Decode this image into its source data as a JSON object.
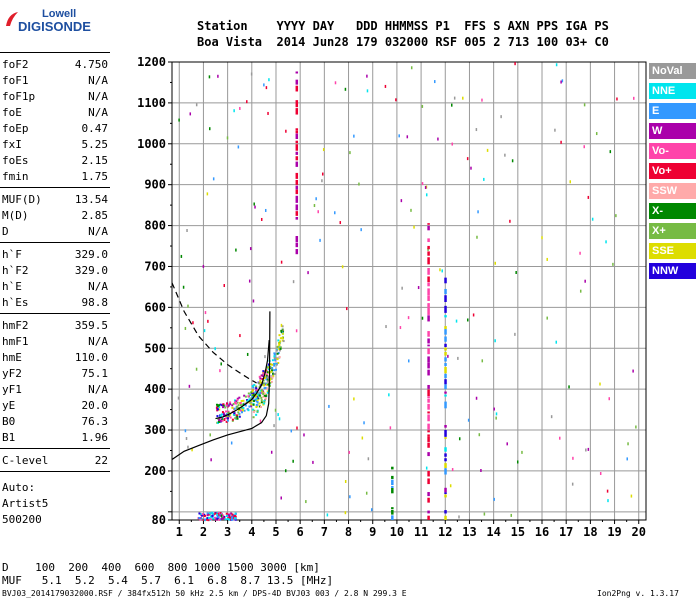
{
  "logo": {
    "line1": "Lowell",
    "line2": "DIGISONDE"
  },
  "header": {
    "labels": "Station    YYYY DAY   DDD HHMMSS P1  FFS S AXN PPS IGA PS",
    "values": "Boa Vista  2014 Jun28 179 032000 RSF 005 2 713 100 03+ C0"
  },
  "params": [
    {
      "name": "foF2",
      "value": "4.750"
    },
    {
      "name": "foF1",
      "value": "N/A"
    },
    {
      "name": "foF1p",
      "value": "N/A"
    },
    {
      "name": "foE",
      "value": "N/A"
    },
    {
      "name": "foEp",
      "value": "0.47"
    },
    {
      "name": "fxI",
      "value": "5.25"
    },
    {
      "name": "foEs",
      "value": "2.15"
    },
    {
      "name": "fmin",
      "value": "1.75"
    },
    {
      "name": "MUF(D)",
      "value": "13.54"
    },
    {
      "name": "M(D)",
      "value": "2.85"
    },
    {
      "name": "D",
      "value": "N/A"
    },
    {
      "name": "h`F",
      "value": "329.0"
    },
    {
      "name": "h`F2",
      "value": "329.0"
    },
    {
      "name": "h`E",
      "value": "N/A"
    },
    {
      "name": "h`Es",
      "value": "98.8"
    },
    {
      "name": "hmF2",
      "value": "359.5"
    },
    {
      "name": "hmF1",
      "value": "N/A"
    },
    {
      "name": "hmE",
      "value": "110.0"
    },
    {
      "name": "yF2",
      "value": "75.1"
    },
    {
      "name": "yF1",
      "value": "N/A"
    },
    {
      "name": "yE",
      "value": "20.0"
    },
    {
      "name": "B0",
      "value": "76.3"
    },
    {
      "name": "B1",
      "value": "1.96"
    },
    {
      "name": "C-level",
      "value": "22"
    }
  ],
  "auto": {
    "line1": "Auto:",
    "line2": "Artist5",
    "line3": "500200"
  },
  "legend": [
    {
      "label": "NoVal",
      "color": "#999999"
    },
    {
      "label": "NNE",
      "color": "#00e5ee"
    },
    {
      "label": "E",
      "color": "#3399ff"
    },
    {
      "label": "W",
      "color": "#aa00aa"
    },
    {
      "label": "Vo-",
      "color": "#ff44aa"
    },
    {
      "label": "Vo+",
      "color": "#ee0033"
    },
    {
      "label": "SSW",
      "color": "#ffaaaa"
    },
    {
      "label": "X-",
      "color": "#008800"
    },
    {
      "label": "X+",
      "color": "#77bb44"
    },
    {
      "label": "SSE",
      "color": "#dddd00"
    },
    {
      "label": "NNW",
      "color": "#2200dd"
    }
  ],
  "muf_table": {
    "d_row": "D    100  200  400  600  800 1000 1500 3000 [km]",
    "muf_row": "MUF   5.1  5.2  5.4  5.7  6.1  6.8  8.7 13.5 [MHz]"
  },
  "footer": {
    "left": "BVJ03_2014179032000.RSF / 384fx512h 50 kHz 2.5 km / DPS-4D BVJ03 003 / 2.8 N 299.3 E",
    "right": "Ion2Png v. 1.3.17"
  },
  "chart_data": {
    "type": "scatter",
    "xlim": [
      0.7,
      20.3
    ],
    "ylim": [
      80,
      1200
    ],
    "x_ticks": [
      1,
      2,
      3,
      4,
      5,
      6,
      7,
      8,
      9,
      10,
      11,
      12,
      13,
      14,
      15,
      16,
      17,
      18,
      19,
      20
    ],
    "y_ticks": [
      80,
      100,
      200,
      300,
      400,
      500,
      600,
      700,
      800,
      900,
      1000,
      1100,
      1200
    ],
    "y_tick_labels": [
      "80",
      "",
      "200",
      "300",
      "400",
      "500",
      "600",
      "700",
      "800",
      "900",
      "1000",
      "1100",
      "1200"
    ],
    "grid": true,
    "legend_position": "right",
    "profile_curve": {
      "x": [
        0.7,
        1.2,
        1.8,
        2.4,
        3.0,
        3.5,
        4.0,
        4.4,
        4.6,
        4.7,
        4.73,
        4.75
      ],
      "y": [
        228,
        248,
        262,
        276,
        288,
        296,
        304,
        318,
        335,
        365,
        430,
        590
      ]
    },
    "dashed_curve": {
      "x": [
        0.7,
        1.2,
        1.8,
        2.4,
        3.0,
        3.5,
        3.9,
        4.2
      ],
      "y": [
        660,
        590,
        530,
        490,
        460,
        440,
        425,
        415
      ]
    },
    "trace_curve": {
      "x": [
        2.5,
        2.8,
        3.1,
        3.4,
        3.7,
        4.0,
        4.2,
        4.4,
        4.55,
        4.65,
        4.72
      ],
      "y": [
        328,
        332,
        340,
        350,
        362,
        375,
        390,
        410,
        440,
        470,
        520
      ]
    },
    "clusters": [
      {
        "name": "F-trace",
        "x_range": [
          2.5,
          4.8
        ],
        "y_range": [
          325,
          480
        ],
        "count": 260,
        "colors": [
          "#ee0033",
          "#ff44aa",
          "#3399ff",
          "#00e5ee",
          "#008800",
          "#aa00aa",
          "#dddd00",
          "#77bb44",
          "#2200dd"
        ]
      },
      {
        "name": "X-trace",
        "x_range": [
          4.0,
          5.3
        ],
        "y_range": [
          340,
          580
        ],
        "count": 150,
        "colors": [
          "#008800",
          "#77bb44",
          "#00e5ee",
          "#3399ff",
          "#ffaaaa",
          "#dddd00",
          "#999999"
        ]
      },
      {
        "name": "Es",
        "x_range": [
          1.75,
          3.3
        ],
        "y_range": [
          82,
          100
        ],
        "count": 120,
        "colors": [
          "#ff44aa",
          "#3399ff",
          "#aa00aa",
          "#ee0033",
          "#00e5ee",
          "#2200dd"
        ]
      },
      {
        "name": "scatter",
        "x_range": [
          0.8,
          20.0
        ],
        "y_range": [
          90,
          1200
        ],
        "count": 220,
        "colors": [
          "#ee0033",
          "#008800",
          "#aa00aa",
          "#3399ff",
          "#00e5ee",
          "#dddd00",
          "#77bb44",
          "#ff44aa",
          "#999999"
        ]
      }
    ],
    "vertical_bands": [
      {
        "x": 12.0,
        "y_range": [
          80,
          680
        ],
        "colors": [
          "#3399ff",
          "#2200dd",
          "#dddd00",
          "#00e5ee",
          "#aa00aa"
        ]
      },
      {
        "x": 5.85,
        "y_range": [
          730,
          1190
        ],
        "colors": [
          "#aa00aa",
          "#ee0033"
        ]
      },
      {
        "x": 11.3,
        "y_range": [
          80,
          820
        ],
        "colors": [
          "#ff44aa",
          "#aa00aa",
          "#ee0033"
        ]
      },
      {
        "x": 9.8,
        "y_range": [
          80,
          210
        ],
        "colors": [
          "#008800",
          "#3399ff"
        ]
      }
    ]
  }
}
